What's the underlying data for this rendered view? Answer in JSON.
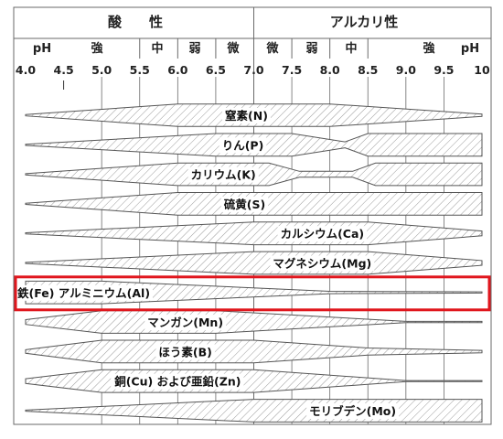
{
  "header": {
    "acid": "酸　　性",
    "alkaline": "アルカリ性"
  },
  "subheader": {
    "ph_left": "pH",
    "strong_left": "強",
    "medium_left": "中",
    "weak_left": "弱",
    "slight_left": "微",
    "slight_right": "微",
    "weak_right": "弱",
    "medium_right": "中",
    "strong_right": "強",
    "ph_right": "pH"
  },
  "chart_data": {
    "type": "band",
    "x_axis": {
      "ticks": [
        4.0,
        4.5,
        5.0,
        5.5,
        6.0,
        6.5,
        7.0,
        7.5,
        8.0,
        8.5,
        9.0,
        9.5,
        10
      ],
      "tick_labels": [
        "4.0",
        "4.5",
        "5.0",
        "5.5",
        "6.0",
        "6.5",
        "7.0",
        "7.5",
        "8.0",
        "8.5",
        "9.0",
        "9.5",
        "10"
      ],
      "range": [
        4.0,
        10.0
      ]
    },
    "bands": [
      {
        "label": "窒素(N)",
        "profile": [
          [
            4.0,
            0.05
          ],
          [
            6.0,
            0.95
          ],
          [
            8.0,
            0.95
          ],
          [
            10,
            0.1
          ]
        ]
      },
      {
        "label": "りん(P)",
        "profile": [
          [
            4.0,
            0.05
          ],
          [
            6.5,
            0.95
          ],
          [
            7.5,
            0.95
          ],
          [
            8.2,
            0.25
          ],
          [
            8.5,
            0.95
          ],
          [
            10,
            0.95
          ]
        ]
      },
      {
        "label": "カリウム(K)",
        "profile": [
          [
            4.0,
            0.05
          ],
          [
            6.0,
            0.95
          ],
          [
            7.2,
            0.95
          ],
          [
            7.6,
            0.25
          ],
          [
            8.3,
            0.25
          ],
          [
            8.6,
            0.95
          ],
          [
            10,
            0.95
          ]
        ]
      },
      {
        "label": "硫黄(S)",
        "profile": [
          [
            4.0,
            0.05
          ],
          [
            6.0,
            0.95
          ],
          [
            10,
            0.95
          ]
        ]
      },
      {
        "label": "カルシウム(Ca)",
        "profile": [
          [
            4.0,
            0.05
          ],
          [
            7.0,
            0.95
          ],
          [
            8.5,
            0.95
          ],
          [
            10,
            0.2
          ]
        ]
      },
      {
        "label": "マグネシウム(Mg)",
        "profile": [
          [
            4.0,
            0.05
          ],
          [
            7.0,
            0.95
          ],
          [
            8.5,
            0.95
          ],
          [
            10,
            0.2
          ]
        ]
      },
      {
        "label": "鉄(Fe) アルミニウム(Al)",
        "profile": [
          [
            4.0,
            0.95
          ],
          [
            5.0,
            0.95
          ],
          [
            8.0,
            0.1
          ],
          [
            10,
            0.05
          ]
        ]
      },
      {
        "label": "マンガン(Mn)",
        "profile": [
          [
            4.0,
            0.2
          ],
          [
            5.0,
            0.95
          ],
          [
            6.5,
            0.95
          ],
          [
            9.0,
            0.05
          ],
          [
            10,
            0.05
          ]
        ]
      },
      {
        "label": "ほう素(B)",
        "profile": [
          [
            4.0,
            0.15
          ],
          [
            5.0,
            0.95
          ],
          [
            7.0,
            0.95
          ],
          [
            8.5,
            0.3
          ],
          [
            10,
            0.1
          ]
        ]
      },
      {
        "label": "銅(Cu) および亜鉛(Zn)",
        "profile": [
          [
            4.0,
            0.2
          ],
          [
            5.0,
            0.95
          ],
          [
            7.0,
            0.95
          ],
          [
            9.0,
            0.05
          ],
          [
            10,
            0.05
          ]
        ]
      },
      {
        "label": "モリブデン(Mo)",
        "profile": [
          [
            4.0,
            0.05
          ],
          [
            7.0,
            0.95
          ],
          [
            10,
            0.95
          ]
        ]
      }
    ]
  },
  "highlight": {
    "band_label": "鉄(Fe) アルミニウム(Al)",
    "color": "#e0161d"
  },
  "colors": {
    "band_fill": "#ffffff",
    "hatch": "#9a9a9a",
    "outline": "#555555",
    "grid": "#6a6a6a"
  }
}
